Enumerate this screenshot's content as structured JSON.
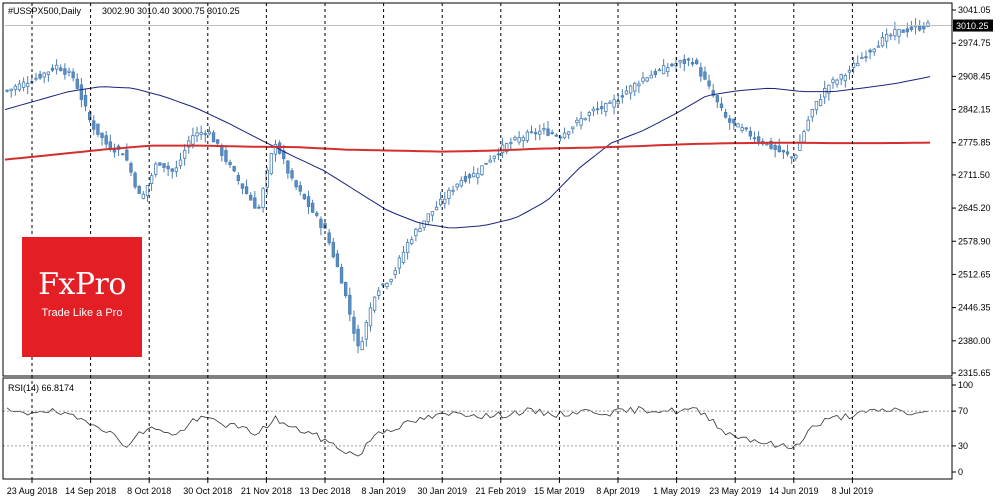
{
  "header": {
    "symbol": "#USSPX500,Daily",
    "ohlc": "3002.90 3010.40 3000.75 3010.25"
  },
  "logo": {
    "brand": "FxPro",
    "tagline": "Trade Like a Pro"
  },
  "colors": {
    "candle_up": "#ffffff",
    "candle_down": "#5b8ec2",
    "candle_outline": "#4a7fb5",
    "ma_fast": "#1a237e",
    "ma_slow": "#d32f2f",
    "rsi_line": "#333333",
    "grid": "#000000",
    "logo_bg": "#e31e24",
    "price_label_bg": "#000000"
  },
  "chart_data": [
    {
      "type": "candlestick",
      "title": "#USSPX500,Daily",
      "current_price_label": "3010.25",
      "y_ticks": [
        "3041.05",
        "2974.75",
        "2908.45",
        "2842.15",
        "2775.85",
        "2711.50",
        "2645.20",
        "2578.90",
        "2512.65",
        "2446.35",
        "2380.00",
        "2315.65"
      ],
      "ylim": [
        2315.65,
        3041.05
      ],
      "x_ticks": [
        "23 Aug 2018",
        "14 Sep 2018",
        "8 Oct 2018",
        "30 Oct 2018",
        "21 Nov 2018",
        "13 Dec 2018",
        "8 Jan 2019",
        "30 Jan 2019",
        "21 Feb 2019",
        "15 Mar 2019",
        "8 Apr 2019",
        "1 May 2019",
        "23 May 2019",
        "14 Jun 2019",
        "8 Jul 2019"
      ],
      "close_anchors": [
        2880,
        2895,
        2910,
        2930,
        2905,
        2815,
        2770,
        2755,
        2660,
        2740,
        2715,
        2790,
        2800,
        2745,
        2690,
        2640,
        2780,
        2700,
        2650,
        2600,
        2500,
        2360,
        2480,
        2510,
        2580,
        2625,
        2660,
        2700,
        2715,
        2750,
        2775,
        2790,
        2800,
        2790,
        2815,
        2840,
        2850,
        2880,
        2905,
        2920,
        2935,
        2940,
        2880,
        2820,
        2800,
        2780,
        2760,
        2745,
        2835,
        2890,
        2910,
        2945,
        2975,
        2995,
        3004,
        3010
      ],
      "series": [
        {
          "name": "",
          "kind": "moving_average",
          "values": [
            2842,
            2860,
            2878,
            2888,
            2885,
            2868,
            2845,
            2815,
            2782,
            2750,
            2720,
            2680,
            2640,
            2615,
            2605,
            2610,
            2625,
            2660,
            2725,
            2775,
            2800,
            2833,
            2870,
            2880,
            2885,
            2878,
            2878,
            2886,
            2895,
            2908
          ]
        },
        {
          "name": "",
          "kind": "moving_average",
          "values": [
            2742,
            2752,
            2762,
            2770,
            2770,
            2768,
            2767,
            2762,
            2760,
            2758,
            2760,
            2764,
            2766,
            2769,
            2773,
            2775,
            2776,
            2775,
            2775,
            2776
          ]
        }
      ]
    },
    {
      "type": "line",
      "title": "RSI(14) 66.8174",
      "y_ticks": [
        "100",
        "70",
        "30",
        "0"
      ],
      "ylim": [
        0,
        100
      ],
      "series": [
        {
          "name": "RSI(14)",
          "values": [
            70,
            66,
            72,
            68,
            62,
            58,
            48,
            30,
            45,
            52,
            40,
            58,
            62,
            55,
            50,
            44,
            62,
            50,
            46,
            36,
            26,
            18,
            45,
            50,
            56,
            62,
            65,
            68,
            66,
            64,
            67,
            70,
            68,
            66,
            69,
            70,
            68,
            70,
            72,
            71,
            70,
            72,
            62,
            44,
            40,
            35,
            30,
            28,
            50,
            60,
            64,
            67,
            70,
            72,
            67,
            67
          ]
        }
      ]
    }
  ]
}
